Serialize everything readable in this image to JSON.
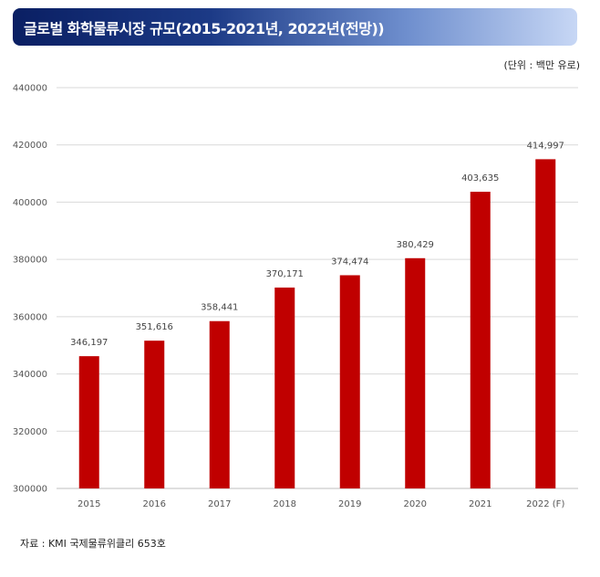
{
  "title": "글로벌 화학물류시장 규모(2015-2021년, 2022년(전망))",
  "unit_label": "(단위 : 백만 유로)",
  "source": "자료 : KMI 국제물류위클리 653호",
  "chart_data": {
    "type": "bar",
    "categories": [
      "2015",
      "2016",
      "2017",
      "2018",
      "2019",
      "2020",
      "2021",
      "2022 (F)"
    ],
    "values": [
      346197,
      351616,
      358441,
      370171,
      374474,
      380429,
      403635,
      414997
    ],
    "value_labels": [
      "346,197",
      "351,616",
      "358,441",
      "370,171",
      "374,474",
      "380,429",
      "403,635",
      "414,997"
    ],
    "ylim": [
      300000,
      440000
    ],
    "yticks": [
      300000,
      320000,
      340000,
      360000,
      380000,
      400000,
      420000,
      440000
    ],
    "ytick_labels": [
      "300000",
      "320000",
      "340000",
      "360000",
      "380000",
      "400000",
      "420000",
      "440000"
    ],
    "grid": true,
    "bar_color": "#c00000",
    "grid_color": "#d9d9d9"
  }
}
